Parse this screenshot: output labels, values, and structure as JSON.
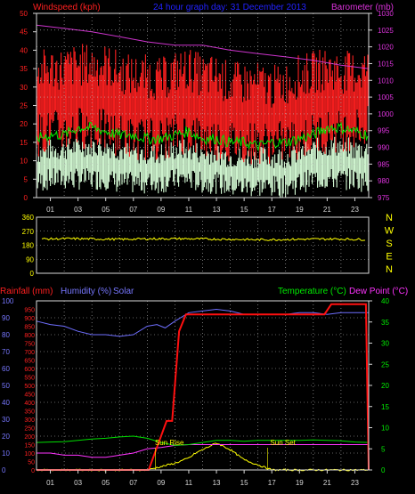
{
  "colors": {
    "background": "#000000",
    "frame": "#d8d8d8",
    "grid": "#bfbfbf",
    "wind_gust": "#ff2020",
    "wind_avg": "#ff1010",
    "wind_green": "#00ee00",
    "wind_light": "#d8ffd8",
    "barometer": "#cc33cc",
    "direction": "#ffff00",
    "rainfall": "#ff1010",
    "humidity": "#6f6fff",
    "solar": "#ffff00",
    "temperature": "#00dd00",
    "dewpoint": "#ff33ff",
    "title": "#2222ff",
    "axis_red": "#ff2020",
    "axis_blue": "#7777ff",
    "axis_green": "#00ee00",
    "axis_magenta": "#dd33dd",
    "axis_yellow": "#ffff00"
  },
  "chart_data": [
    {
      "type": "line",
      "panel": "wind",
      "title": "24 hour graph day: 31 December 2013",
      "left_axis_label": "Windspeed (kph)",
      "right_axis_label": "Barometer (mb)",
      "x_ticks": [
        "01",
        "03",
        "05",
        "07",
        "09",
        "11",
        "13",
        "15",
        "17",
        "19",
        "21",
        "23"
      ],
      "x_range": [
        0,
        24
      ],
      "left_ticks": [
        "0",
        "5",
        "10",
        "15",
        "20",
        "25",
        "30",
        "35",
        "40",
        "45",
        "50"
      ],
      "left_range": [
        0,
        50
      ],
      "right_ticks": [
        "975",
        "980",
        "985",
        "990",
        "995",
        "1000",
        "1005",
        "1010",
        "1015",
        "1020",
        "1025",
        "1030"
      ],
      "right_range": [
        975,
        1030
      ],
      "series": [
        {
          "key": "gust_high",
          "x": [
            0,
            1,
            2,
            3,
            4,
            5,
            6,
            7,
            8,
            9,
            10,
            11,
            12,
            13,
            14,
            15,
            16,
            17,
            18,
            19,
            20,
            21,
            22,
            23,
            24
          ],
          "values": [
            34,
            35,
            35,
            36,
            36,
            36,
            34,
            33,
            33,
            32,
            34,
            35,
            33,
            33,
            31,
            31,
            31,
            30,
            31,
            33,
            34,
            35,
            34,
            34,
            35
          ]
        },
        {
          "key": "gust_low",
          "x": [
            0,
            1,
            2,
            3,
            4,
            5,
            6,
            7,
            8,
            9,
            10,
            11,
            12,
            13,
            14,
            15,
            16,
            17,
            18,
            19,
            20,
            21,
            22,
            23,
            24
          ],
          "values": [
            17,
            18,
            18,
            19,
            19,
            18,
            17,
            16,
            16,
            16,
            17,
            18,
            16,
            16,
            15,
            15,
            15,
            15,
            15,
            16,
            17,
            18,
            18,
            19,
            19
          ]
        },
        {
          "key": "avg",
          "x": [
            0,
            1,
            2,
            3,
            4,
            5,
            6,
            7,
            8,
            9,
            10,
            11,
            12,
            13,
            14,
            15,
            16,
            17,
            18,
            19,
            20,
            21,
            22,
            23,
            24
          ],
          "values": [
            16,
            17,
            17,
            19,
            19,
            18,
            17,
            17,
            16,
            16,
            17,
            18,
            16,
            16,
            15,
            15,
            14,
            15,
            15,
            16,
            17,
            19,
            19,
            18,
            17
          ]
        },
        {
          "key": "lull_high",
          "x": [
            0,
            1,
            2,
            3,
            4,
            5,
            6,
            7,
            8,
            9,
            10,
            11,
            12,
            13,
            14,
            15,
            16,
            17,
            18,
            19,
            20,
            21,
            22,
            23,
            24
          ],
          "values": [
            12,
            13,
            13,
            14,
            14,
            14,
            13,
            12,
            12,
            12,
            13,
            13,
            12,
            12,
            11,
            11,
            11,
            11,
            11,
            12,
            13,
            14,
            14,
            13,
            13
          ]
        },
        {
          "key": "lull_low",
          "x": [
            0,
            1,
            2,
            3,
            4,
            5,
            6,
            7,
            8,
            9,
            10,
            11,
            12,
            13,
            14,
            15,
            16,
            17,
            18,
            19,
            20,
            21,
            22,
            23,
            24
          ],
          "values": [
            4,
            5,
            5,
            5,
            5,
            5,
            4,
            4,
            4,
            4,
            5,
            5,
            4,
            4,
            3,
            3,
            3,
            3,
            3,
            4,
            5,
            5,
            5,
            5,
            4
          ]
        },
        {
          "key": "barometer",
          "x": [
            0,
            2,
            4,
            6,
            8,
            10,
            12,
            14,
            16,
            18,
            20,
            22,
            24
          ],
          "values": [
            1026.5,
            1025.5,
            1024.5,
            1023,
            1021.5,
            1020.5,
            1020.5,
            1019,
            1018,
            1017,
            1016,
            1014.5,
            1013.5
          ]
        }
      ]
    },
    {
      "type": "line",
      "panel": "direction",
      "left_ticks": [
        "0",
        "90",
        "180",
        "270",
        "360"
      ],
      "left_range": [
        0,
        360
      ],
      "compass_labels": [
        "N",
        "W",
        "S",
        "E",
        "N"
      ],
      "x_range": [
        0,
        24
      ],
      "series": [
        {
          "key": "direction",
          "x": [
            0,
            2,
            4,
            6,
            8,
            10,
            12,
            14,
            16,
            18,
            20,
            22,
            24
          ],
          "values": [
            220,
            222,
            220,
            218,
            221,
            222,
            220,
            218,
            215,
            217,
            219,
            220,
            216
          ]
        }
      ]
    },
    {
      "type": "line",
      "panel": "temperature",
      "left_axis_label_rain": "Rainfall (mm)",
      "left_axis_label_humidity": "Humidity (%)",
      "left_axis_label_solar": "Solar",
      "right_axis_label_temp": "Temperature (°C)",
      "right_axis_label_dew": "Dew Point (°C)",
      "x_ticks": [
        "01",
        "03",
        "05",
        "07",
        "09",
        "11",
        "13",
        "15",
        "17",
        "19",
        "21",
        "23"
      ],
      "x_range": [
        0,
        24
      ],
      "humidity_ticks": [
        "0",
        "10",
        "20",
        "30",
        "40",
        "50",
        "60",
        "70",
        "80",
        "90",
        "100"
      ],
      "humidity_range": [
        0,
        100
      ],
      "rain_ticks": [
        "0",
        "50",
        "100",
        "150",
        "200",
        "250",
        "300",
        "350",
        "400",
        "450",
        "500",
        "550",
        "600",
        "650",
        "700",
        "750",
        "800",
        "850",
        "900",
        "950"
      ],
      "rain_range": [
        0,
        1000
      ],
      "temp_ticks": [
        "0",
        "5",
        "10",
        "15",
        "20",
        "25",
        "30",
        "35",
        "40"
      ],
      "temp_range": [
        0,
        40
      ],
      "annotations": [
        "Sun Rise",
        "Sun Set"
      ],
      "series": [
        {
          "key": "rainfall",
          "x": [
            0,
            8.1,
            9.4,
            9.8,
            10.3,
            10.8,
            11.5,
            20.8,
            21.3,
            23.8,
            24
          ],
          "values": [
            0,
            0,
            290,
            290,
            820,
            920,
            920,
            920,
            980,
            980,
            0
          ]
        },
        {
          "key": "humidity",
          "x": [
            0,
            1,
            2,
            3,
            4,
            5,
            6,
            7,
            8,
            8.7,
            9.3,
            10,
            11,
            12,
            13,
            14,
            15,
            16,
            17,
            18,
            19,
            20,
            21,
            22,
            23,
            24
          ],
          "values": [
            88,
            86,
            85,
            82,
            80,
            80,
            79,
            80,
            85,
            86,
            84,
            88,
            93,
            94,
            95,
            94,
            92,
            92,
            92,
            92,
            93,
            93,
            92,
            93,
            93,
            93
          ]
        },
        {
          "key": "temperature",
          "x": [
            0,
            1,
            2,
            3,
            4,
            5,
            6,
            7,
            8,
            9,
            10,
            11,
            12,
            13,
            14,
            15,
            16,
            17,
            18,
            19,
            20,
            21,
            22,
            23,
            24
          ],
          "values": [
            6.5,
            6.6,
            6.7,
            7,
            7.3,
            7.5,
            7.8,
            8,
            7.5,
            6.5,
            5.8,
            6,
            6.5,
            7,
            7,
            6.8,
            7,
            7,
            7,
            7,
            7.1,
            7,
            6.9,
            6.6,
            6.5
          ]
        },
        {
          "key": "dewpoint",
          "x": [
            0,
            1,
            2,
            3,
            4,
            5,
            6,
            7,
            8,
            9,
            10,
            11,
            12,
            13,
            14,
            15,
            16,
            17,
            18,
            19,
            20,
            21,
            22,
            23,
            24
          ],
          "values": [
            4,
            4,
            3.5,
            3.5,
            3,
            3,
            3.5,
            4,
            5,
            5.3,
            5.8,
            6,
            6,
            6,
            6,
            6,
            6,
            6,
            6,
            6,
            6,
            6,
            6,
            6,
            6
          ]
        },
        {
          "key": "solar",
          "x": [
            0,
            8,
            9,
            10,
            11,
            11.5,
            12,
            12.5,
            13,
            13.5,
            14,
            15,
            16,
            17,
            24
          ],
          "values": [
            0,
            0,
            2,
            4,
            7,
            10,
            12,
            14,
            16,
            14,
            12,
            6,
            3,
            0,
            0
          ]
        }
      ]
    }
  ]
}
